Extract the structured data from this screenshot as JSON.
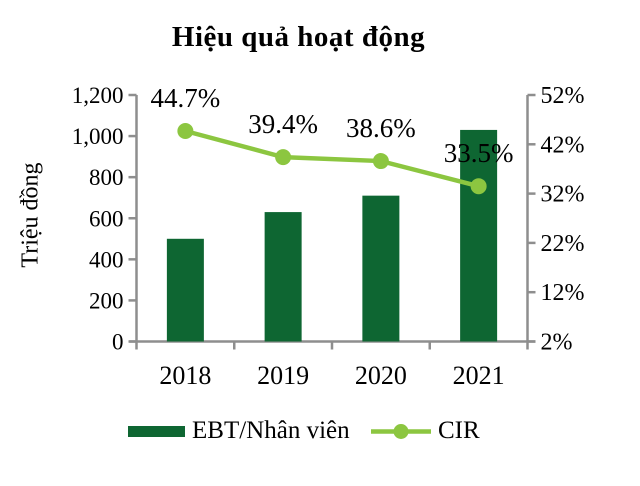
{
  "chart_data": {
    "type": "bar-line-combo",
    "title": "Hiệu quả hoạt động",
    "categories": [
      "2018",
      "2019",
      "2020",
      "2021"
    ],
    "series": [
      {
        "name": "EBT/Nhân viên",
        "type": "bar",
        "axis": "left",
        "color": "#0E6632",
        "values": [
          500,
          630,
          710,
          1030
        ]
      },
      {
        "name": "CIR",
        "type": "line",
        "axis": "right",
        "color": "#8CC640",
        "values": [
          44.7,
          39.4,
          38.6,
          33.5
        ],
        "point_labels": [
          "44.7%",
          "39.4%",
          "38.6%",
          "33.5%"
        ]
      }
    ],
    "left_axis": {
      "title": "Triệu đồng",
      "tick_labels": [
        "1,200",
        "1,000",
        "800",
        "600",
        "400",
        "200",
        "0"
      ],
      "min": 0,
      "max": 1200
    },
    "right_axis": {
      "tick_labels": [
        "52%",
        "42%",
        "32%",
        "22%",
        "12%",
        "2%"
      ],
      "min": 2,
      "max": 52
    },
    "grid": false,
    "legend_position": "bottom"
  },
  "colors": {
    "axis": "#8E8E8E",
    "text": "#000000"
  }
}
